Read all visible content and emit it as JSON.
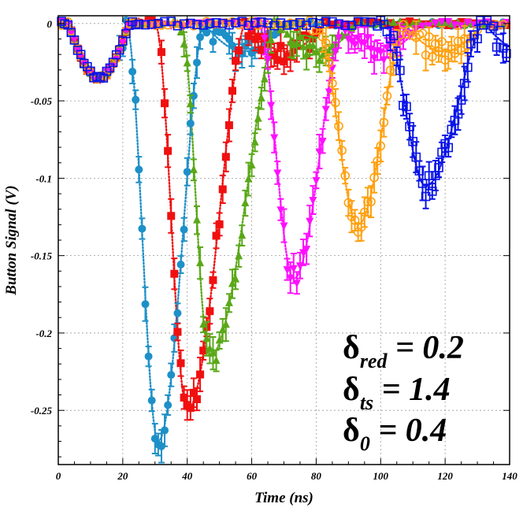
{
  "chart_data": {
    "type": "scatter",
    "title": "",
    "xlabel": "Time (ns)",
    "ylabel": "Button Signal (V)",
    "xlim": [
      0,
      140
    ],
    "ylim": [
      -0.285,
      0.005
    ],
    "grid": true,
    "x_ticks": [
      "0",
      "20",
      "40",
      "60",
      "80",
      "100",
      "120",
      "140"
    ],
    "y_ticks": [
      "0",
      "-0.05",
      "-0.1",
      "-0.15",
      "-0.2",
      "-0.25"
    ],
    "annotations": [
      {
        "symbol": "δ",
        "sub": "red",
        "value": "= 0.2"
      },
      {
        "symbol": "δ",
        "sub": "ts",
        "value": "= 1.4"
      },
      {
        "symbol": "δ",
        "sub": "0",
        "value": "= 0.4"
      }
    ],
    "series": [
      {
        "color": "#1e90c8",
        "marker": "circle-filled",
        "peak_x": 31,
        "peak_y": -0.27,
        "start_x": 21,
        "end_x": 45
      },
      {
        "color": "#f01010",
        "marker": "square-filled",
        "peak_x": 40,
        "peak_y": -0.25,
        "start_x": 30,
        "end_x": 58
      },
      {
        "color": "#5aa818",
        "marker": "triangle-filled",
        "peak_x": 47,
        "peak_y": -0.215,
        "start_x": 38,
        "end_x": 68
      },
      {
        "color": "#ff10ff",
        "marker": "triangle-down-filled",
        "peak_x": 73,
        "peak_y": -0.165,
        "start_x": 62,
        "end_x": 88
      },
      {
        "color": "#ffa010",
        "marker": "circle-open",
        "peak_x": 93,
        "peak_y": -0.13,
        "start_x": 80,
        "end_x": 107
      },
      {
        "color": "#0a14e6",
        "marker": "square-open",
        "peak_x": 114,
        "peak_y": -0.105,
        "start_x": 101,
        "end_x": 132
      }
    ],
    "precursor": {
      "peak_x": 13,
      "peak_y": -0.035,
      "start_x": 3,
      "end_x": 22
    }
  }
}
